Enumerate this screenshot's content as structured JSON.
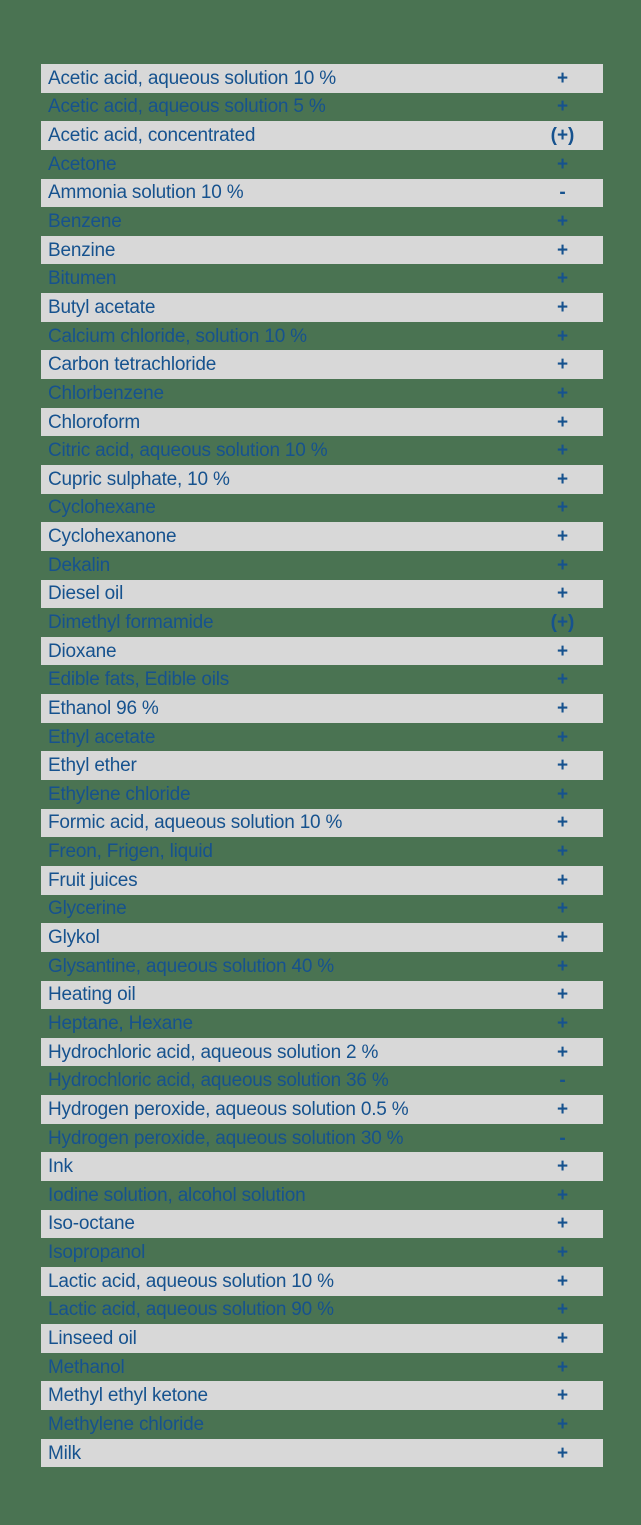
{
  "page": {
    "background_color": "#4a7352",
    "stripe_color": "#d8d8d8",
    "text_color": "#16528e"
  },
  "table": {
    "rows": [
      {
        "name": "Acetic acid, aqueous solution 10 %",
        "rating": "+"
      },
      {
        "name": "Acetic acid, aqueous solution 5 %",
        "rating": "+"
      },
      {
        "name": "Acetic acid, concentrated",
        "rating": "(+)"
      },
      {
        "name": "Acetone",
        "rating": "+"
      },
      {
        "name": "Ammonia solution 10 %",
        "rating": "-"
      },
      {
        "name": "Benzene",
        "rating": "+"
      },
      {
        "name": "Benzine",
        "rating": "+"
      },
      {
        "name": "Bitumen",
        "rating": "+"
      },
      {
        "name": "Butyl acetate",
        "rating": "+"
      },
      {
        "name": "Calcium chloride, solution 10 %",
        "rating": "+"
      },
      {
        "name": "Carbon tetrachloride",
        "rating": "+"
      },
      {
        "name": "Chlorbenzene",
        "rating": "+"
      },
      {
        "name": "Chloroform",
        "rating": "+"
      },
      {
        "name": "Citric acid, aqueous solution 10 %",
        "rating": "+"
      },
      {
        "name": "Cupric sulphate, 10 %",
        "rating": "+"
      },
      {
        "name": "Cyclohexane",
        "rating": "+"
      },
      {
        "name": "Cyclohexanone",
        "rating": "+"
      },
      {
        "name": "Dekalin",
        "rating": "+"
      },
      {
        "name": "Diesel oil",
        "rating": "+"
      },
      {
        "name": "Dimethyl formamide",
        "rating": "(+)"
      },
      {
        "name": "Dioxane",
        "rating": "+"
      },
      {
        "name": "Edible fats, Edible oils",
        "rating": "+"
      },
      {
        "name": "Ethanol 96 %",
        "rating": "+"
      },
      {
        "name": "Ethyl acetate",
        "rating": "+"
      },
      {
        "name": "Ethyl ether",
        "rating": "+"
      },
      {
        "name": "Ethylene chloride",
        "rating": "+"
      },
      {
        "name": "Formic acid, aqueous solution 10 %",
        "rating": "+"
      },
      {
        "name": "Freon, Frigen, liquid",
        "rating": "+"
      },
      {
        "name": "Fruit juices",
        "rating": "+"
      },
      {
        "name": "Glycerine",
        "rating": "+"
      },
      {
        "name": "Glykol",
        "rating": "+"
      },
      {
        "name": "Glysantine, aqueous solution 40 %",
        "rating": "+"
      },
      {
        "name": "Heating oil",
        "rating": "+"
      },
      {
        "name": "Heptane, Hexane",
        "rating": "+"
      },
      {
        "name": "Hydrochloric acid, aqueous solution 2 %",
        "rating": "+"
      },
      {
        "name": "Hydrochloric acid, aqueous solution 36 %",
        "rating": "-"
      },
      {
        "name": "Hydrogen peroxide, aqueous solution 0.5 %",
        "rating": "+"
      },
      {
        "name": "Hydrogen peroxide, aqueous solution 30 %",
        "rating": "-"
      },
      {
        "name": "Ink",
        "rating": "+"
      },
      {
        "name": "Iodine solution, alcohol solution",
        "rating": "+"
      },
      {
        "name": "Iso-octane",
        "rating": "+"
      },
      {
        "name": "Isopropanol",
        "rating": "+"
      },
      {
        "name": "Lactic acid, aqueous solution 10 %",
        "rating": "+"
      },
      {
        "name": "Lactic acid, aqueous solution 90 %",
        "rating": "+"
      },
      {
        "name": "Linseed oil",
        "rating": "+"
      },
      {
        "name": "Methanol",
        "rating": "+"
      },
      {
        "name": "Methyl ethyl ketone",
        "rating": "+"
      },
      {
        "name": "Methylene chloride",
        "rating": "+"
      },
      {
        "name": "Milk",
        "rating": "+"
      }
    ]
  }
}
